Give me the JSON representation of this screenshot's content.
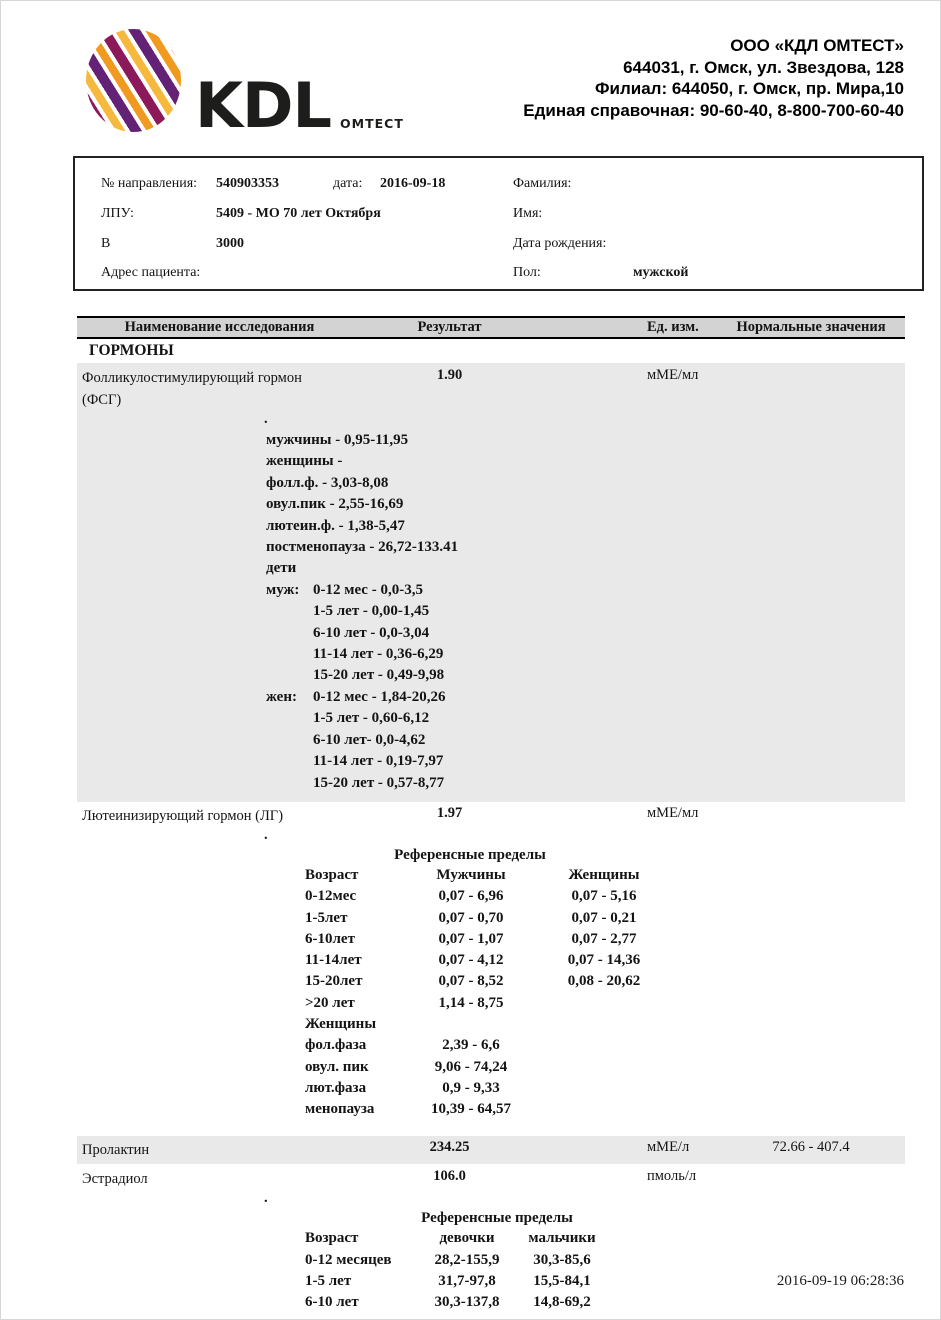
{
  "colors": {
    "header_row_gray": "#d3d3d3",
    "block_gray": "#e9e9e9",
    "logo_purple": "#8c1a5a",
    "logo_orange": "#f09a1f",
    "text": "#141414"
  },
  "brand": {
    "logo_word": "KDL",
    "logo_sub": "ОМТЕСТ",
    "company_lines": [
      "ООО «КДЛ ОМТЕСТ»",
      "644031,  г. Омск, ул. Звездова, 128",
      "Филиал: 644050,  г. Омск, пр. Мира,10",
      "Единая справочная: 90-60-40, 8-800-700-60-40"
    ]
  },
  "patient": {
    "ref_label": "№ направления:",
    "ref_value": "540903353",
    "date_label": "дата:",
    "date_value": "2016-09-18",
    "surname_label": "Фамилия:",
    "lpu_label": "ЛПУ:",
    "lpu_value": "5409 - МО 70 лет Октября",
    "name_label": "Имя:",
    "b_label": "В",
    "b_value": "3000",
    "birth_label": "Дата рождения:",
    "address_label": "Адрес пациента:",
    "sex_label": "Пол:",
    "sex_value": "мужской"
  },
  "results": {
    "headers": [
      "Наименование исследования",
      "Результат",
      "Ед. изм.",
      "Нормальные значения"
    ],
    "section_title": "ГОРМОНЫ",
    "fsh": {
      "name_line1": "Фолликулостимулирующий гормон",
      "name_line2": "(ФСГ)",
      "result": "1.90",
      "units": "мМЕ/мл"
    },
    "fsh_ref": {
      "dot": ".",
      "lines": [
        "мужчины - 0,95-11,95",
        "женщины -",
        "фолл.ф. - 3,03-8,08",
        "овул.пик - 2,55-16,69",
        "лютеин.ф. - 1,38-5,47",
        "постменопауза - 26,72-133.41",
        "дети"
      ],
      "male_label": "муж:",
      "male_lines": [
        "0-12 мес - 0,0-3,5",
        "1-5 лет - 0,00-1,45",
        "6-10 лет - 0,0-3,04",
        "11-14 лет - 0,36-6,29",
        "15-20 лет - 0,49-9,98"
      ],
      "female_label": "жен:",
      "female_lines": [
        "0-12 мес - 1,84-20,26",
        "1-5 лет - 0,60-6,12",
        "6-10 лет- 0,0-4,62",
        "11-14 лет - 0,19-7,97",
        "15-20 лет - 0,57-8,77"
      ]
    },
    "lh": {
      "name": "Лютеинизирующий гормон (ЛГ)",
      "result": "1.97",
      "units": "мМЕ/мл"
    },
    "lh_ref": {
      "dot": ".",
      "title": "Референсные пределы",
      "col_headers": [
        "Возраст",
        "Мужчины",
        "Женщины"
      ],
      "rows": [
        [
          "0-12мес",
          "0,07 - 6,96",
          "0,07 - 5,16"
        ],
        [
          "1-5лет",
          "0,07 - 0,70",
          "0,07 - 0,21"
        ],
        [
          "6-10лет",
          "0,07 - 1,07",
          "0,07 - 2,77"
        ],
        [
          "11-14лет",
          "0,07 - 4,12",
          "0,07 - 14,36"
        ],
        [
          "15-20лет",
          "0,07 - 8,52",
          "0,08 - 20,62"
        ],
        [
          ">20 лет",
          "1,14 - 8,75",
          ""
        ],
        [
          "Женщины",
          "",
          ""
        ],
        [
          "фол.фаза",
          "2,39 - 6,6",
          ""
        ],
        [
          "овул. пик",
          "9,06 - 74,24",
          ""
        ],
        [
          "лют.фаза",
          "0,9 - 9,33",
          ""
        ],
        [
          "менопауза",
          "10,39 - 64,57",
          ""
        ]
      ]
    },
    "prolactin": {
      "name": "Пролактин",
      "result": "234.25",
      "units": "мМЕ/л",
      "normal": "72.66 - 407.4"
    },
    "estradiol": {
      "name": "Эстрадиол",
      "result": "106.0",
      "units": "пмоль/л"
    },
    "estradiol_ref": {
      "dot": ".",
      "title": "Референсные пределы",
      "col_headers": [
        "Возраст",
        "девочки",
        "мальчики"
      ],
      "rows": [
        [
          "0-12 месяцев",
          "28,2-155,9",
          "30,3-85,6"
        ],
        [
          "1-5 лет",
          "31,7-97,8",
          "15,5-84,1"
        ],
        [
          "6-10 лет",
          "30,3-137,8",
          "14,8-69,2"
        ]
      ]
    }
  },
  "footer": {
    "timestamp": "2016-09-19 06:28:36"
  }
}
